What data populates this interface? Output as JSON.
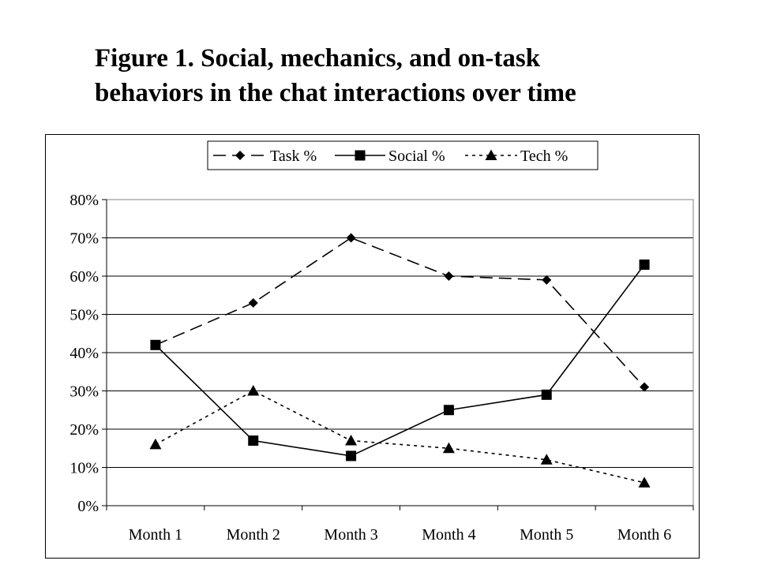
{
  "title_lines": [
    "Figure 1. Social, mechanics, and on-task",
    "behaviors in the chat interactions over time"
  ],
  "chart_data": {
    "type": "line",
    "title": "Figure 1. Social, mechanics, and on-task behaviors in the chat interactions over time",
    "categories": [
      "Month 1",
      "Month 2",
      "Month 3",
      "Month 4",
      "Month 5",
      "Month 6"
    ],
    "series": [
      {
        "name": "Task %",
        "values": [
          42,
          53,
          70,
          60,
          59,
          31
        ],
        "marker": "diamond",
        "line_style": "dashed"
      },
      {
        "name": "Social %",
        "values": [
          42,
          17,
          13,
          25,
          29,
          63
        ],
        "marker": "square",
        "line_style": "solid"
      },
      {
        "name": "Tech %",
        "values": [
          16,
          30,
          17,
          15,
          12,
          6
        ],
        "marker": "triangle",
        "line_style": "dotted"
      }
    ],
    "ylim": [
      0,
      80
    ],
    "yticks": [
      "0%",
      "10%",
      "20%",
      "30%",
      "40%",
      "50%",
      "60%",
      "70%",
      "80%"
    ],
    "grid": true,
    "legend": "top"
  }
}
